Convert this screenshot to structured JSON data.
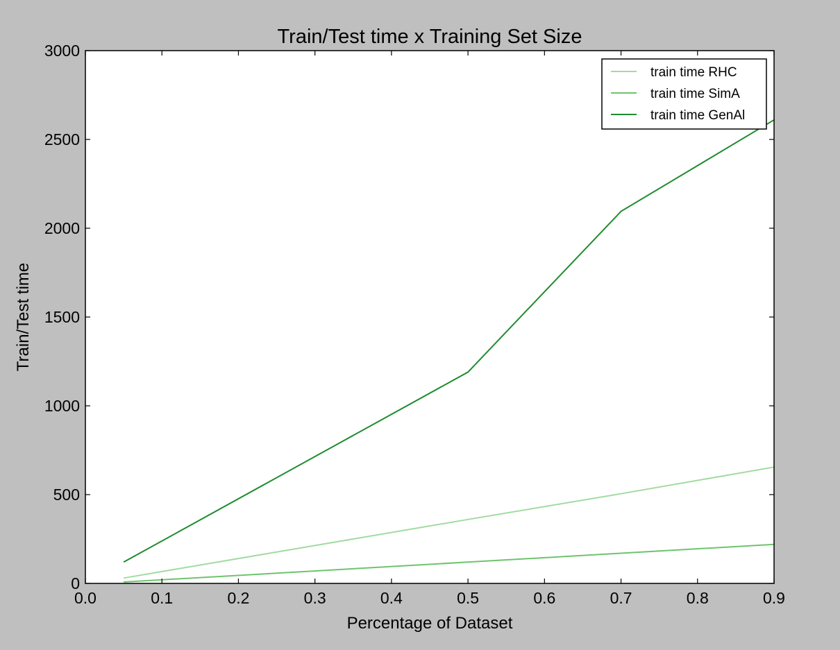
{
  "chart_data": {
    "type": "line",
    "title": "Train/Test time x Training Set Size",
    "xlabel": "Percentage of Dataset",
    "ylabel": "Train/Test time",
    "xlim": [
      0.0,
      0.9
    ],
    "ylim": [
      0,
      3000
    ],
    "xticks": [
      "0.0",
      "0.1",
      "0.2",
      "0.3",
      "0.4",
      "0.5",
      "0.6",
      "0.7",
      "0.8",
      "0.9"
    ],
    "yticks": [
      "0",
      "500",
      "1000",
      "1500",
      "2000",
      "2500",
      "3000"
    ],
    "grid": false,
    "legend_position": "top-right",
    "series": [
      {
        "name": "train time RHC",
        "color": "#a1dba0",
        "x": [
          0.05,
          0.5,
          0.7,
          0.9
        ],
        "y": [
          30,
          360,
          505,
          655
        ]
      },
      {
        "name": "train time SimA",
        "color": "#6cc46d",
        "x": [
          0.05,
          0.5,
          0.7,
          0.9
        ],
        "y": [
          8,
          120,
          170,
          220
        ]
      },
      {
        "name": "train time GenAl",
        "color": "#1f8b2e",
        "x": [
          0.05,
          0.5,
          0.7,
          0.9
        ],
        "y": [
          120,
          1190,
          2095,
          2610
        ]
      }
    ]
  }
}
